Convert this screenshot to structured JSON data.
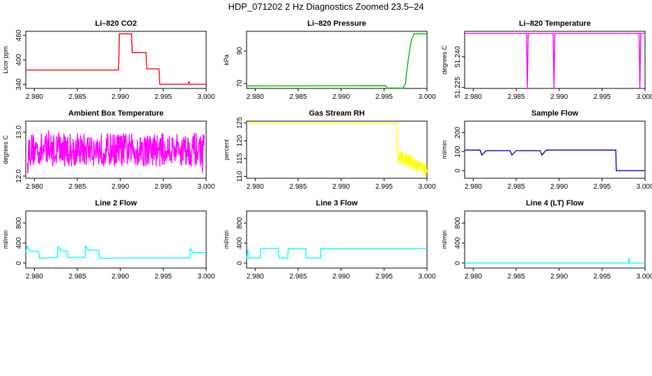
{
  "figure": {
    "title": "HDP_071202  2 Hz Diagnostics Zoomed 23.5–24"
  },
  "chart_data": [
    {
      "type": "line",
      "title": "Li–820 CO2",
      "xlabel": "",
      "ylabel": "Licor ppm",
      "xlim": [
        2.979,
        3.0
      ],
      "ylim": [
        330,
        470
      ],
      "xticks": [
        "2.980",
        "2.985",
        "2.990",
        "2.995",
        "3.000"
      ],
      "yticks": [
        {
          "value": 340,
          "label": "340"
        },
        {
          "value": 400,
          "label": "400"
        },
        {
          "value": 460,
          "label": "460"
        }
      ],
      "series": [
        {
          "color": "#ff0000",
          "x": [
            2.979,
            2.9898,
            2.9899,
            2.9913,
            2.9914,
            2.993,
            2.9931,
            2.9945,
            2.9946,
            2.9979,
            2.998,
            2.9981,
            3.0
          ],
          "y": [
            375,
            375,
            464,
            464,
            418,
            418,
            378,
            378,
            340,
            340,
            346,
            340,
            340
          ]
        }
      ]
    },
    {
      "type": "line",
      "title": "Li–820 Pressure",
      "xlabel": "",
      "ylabel": "kPa",
      "xlim": [
        2.979,
        3.0
      ],
      "ylim": [
        67,
        102
      ],
      "xticks": [
        "2.980",
        "2.985",
        "2.990",
        "2.995",
        "3.000"
      ],
      "yticks": [
        {
          "value": 70,
          "label": "70"
        },
        {
          "value": 90,
          "label": "90"
        }
      ],
      "series": [
        {
          "color": "#00bb00",
          "x": [
            2.979,
            2.9952,
            2.9953,
            2.9972,
            2.9975,
            2.9977,
            2.998,
            2.9982,
            2.9985,
            3.0
          ],
          "y": [
            68.5,
            68.7,
            67.2,
            67.2,
            70,
            80,
            91,
            97,
            100.5,
            100.5
          ]
        }
      ]
    },
    {
      "type": "line",
      "title": "Li–820 Temperature",
      "xlabel": "",
      "ylabel": "degrees C",
      "xlim": [
        2.979,
        3.0
      ],
      "ylim": [
        51.2245,
        51.2525
      ],
      "xticks": [
        "2.980",
        "2.985",
        "2.990",
        "2.995",
        "3.000"
      ],
      "yticks": [
        {
          "value": 51.225,
          "label": "51.225"
        },
        {
          "value": 51.24,
          "label": "51.240"
        }
      ],
      "series": [
        {
          "color": "#ff00ff",
          "x": [
            2.979,
            2.9862,
            2.9863,
            2.9864,
            2.9865,
            2.9893,
            2.9894,
            2.9895,
            2.9896,
            2.9993,
            2.9994,
            2.9995,
            2.9996,
            3.0
          ],
          "y": [
            51.2515,
            51.2515,
            51.2245,
            51.2515,
            51.2515,
            51.2515,
            51.2245,
            51.2515,
            51.2515,
            51.2515,
            51.2245,
            51.2515,
            51.2515,
            51.2515
          ]
        }
      ]
    },
    {
      "type": "line",
      "title": "Ambient Box Temperature",
      "xlabel": "",
      "ylabel": "degrees C",
      "xlim": [
        2.979,
        3.0
      ],
      "ylim": [
        11.95,
        13.25
      ],
      "xticks": [
        "2.980",
        "2.985",
        "2.990",
        "2.995",
        "3.000"
      ],
      "yticks": [
        {
          "value": 12.0,
          "label": "12.0"
        },
        {
          "value": 13.0,
          "label": "13.0"
        }
      ],
      "series": [
        {
          "color": "#ff00ff",
          "pattern": "noise",
          "x": [
            2.979,
            3.0
          ],
          "y": [
            12.6,
            12.6
          ],
          "y_low": 12.05,
          "y_high": 13.15
        }
      ]
    },
    {
      "type": "line",
      "title": "Gas Stream RH",
      "xlabel": "",
      "ylabel": "percent",
      "xlim": [
        2.979,
        3.0
      ],
      "ylim": [
        109.5,
        125.5
      ],
      "xticks": [
        "2.980",
        "2.985",
        "2.990",
        "2.995",
        "3.000"
      ],
      "yticks": [
        {
          "value": 110,
          "label": "110"
        },
        {
          "value": 115,
          "label": "115"
        },
        {
          "value": 120,
          "label": "120"
        },
        {
          "value": 125,
          "label": "125"
        }
      ],
      "series": [
        {
          "color": "#ffff00",
          "x": [
            2.979,
            2.9965,
            2.99655,
            2.997,
            2.998,
            2.999,
            3.0
          ],
          "y": [
            125,
            125,
            116,
            114,
            113,
            112,
            111
          ]
        }
      ]
    },
    {
      "type": "line",
      "title": "Sample Flow",
      "xlabel": "",
      "ylabel": "ml/min",
      "xlim": [
        2.979,
        3.0
      ],
      "ylim": [
        -40,
        260
      ],
      "xticks": [
        "2.980",
        "2.985",
        "2.990",
        "2.995",
        "3.000"
      ],
      "yticks": [
        {
          "value": 0,
          "label": "0"
        },
        {
          "value": 100,
          "label": "100"
        },
        {
          "value": 200,
          "label": "200"
        }
      ],
      "series": [
        {
          "color": "#0000cc",
          "x": [
            2.979,
            2.9808,
            2.981,
            2.9815,
            2.9843,
            2.9845,
            2.985,
            2.9878,
            2.988,
            2.9885,
            2.9966,
            2.99665,
            2.997,
            3.0
          ],
          "y": [
            108,
            108,
            82,
            105,
            105,
            82,
            105,
            105,
            82,
            108,
            108,
            0,
            0,
            0
          ]
        }
      ]
    },
    {
      "type": "line",
      "title": "Line 2 Flow",
      "xlabel": "",
      "ylabel": "ml/min",
      "xlim": [
        2.979,
        3.0
      ],
      "ylim": [
        -100,
        1040
      ],
      "xticks": [
        "2.980",
        "2.985",
        "2.990",
        "2.995",
        "3.000"
      ],
      "yticks": [
        {
          "value": 0,
          "label": "0"
        },
        {
          "value": 400,
          "label": "400"
        },
        {
          "value": 800,
          "label": "800"
        }
      ],
      "series": [
        {
          "color": "#00ffff",
          "x": [
            2.979,
            2.97915,
            2.9795,
            2.9805,
            2.9806,
            2.9827,
            2.98275,
            2.9831,
            2.9838,
            2.9839,
            2.9859,
            2.98595,
            2.9863,
            2.9875,
            2.9876,
            2.9896,
            2.9981,
            2.99815,
            2.9985,
            3.0
          ],
          "y": [
            220,
            330,
            240,
            230,
            90,
            120,
            330,
            250,
            240,
            110,
            120,
            340,
            260,
            250,
            90,
            100,
            100,
            290,
            210,
            210
          ]
        }
      ]
    },
    {
      "type": "line",
      "title": "Line 3 Flow",
      "xlabel": "",
      "ylabel": "ml/min",
      "xlim": [
        2.979,
        3.0
      ],
      "ylim": [
        -100,
        1040
      ],
      "xticks": [
        "2.980",
        "2.985",
        "2.990",
        "2.995",
        "3.000"
      ],
      "yticks": [
        {
          "value": 0,
          "label": "0"
        },
        {
          "value": 400,
          "label": "400"
        },
        {
          "value": 800,
          "label": "800"
        }
      ],
      "series": [
        {
          "color": "#00ffff",
          "x": [
            2.979,
            2.97915,
            2.9792,
            2.9806,
            2.98065,
            2.9827,
            2.98275,
            2.9838,
            2.98385,
            2.9859,
            2.98595,
            2.9876,
            2.98765,
            3.0
          ],
          "y": [
            100,
            270,
            100,
            100,
            290,
            290,
            100,
            100,
            290,
            290,
            100,
            100,
            290,
            290
          ]
        }
      ]
    },
    {
      "type": "line",
      "title": "Line 4 (LT) Flow",
      "xlabel": "",
      "ylabel": "ml/min",
      "xlim": [
        2.979,
        3.0
      ],
      "ylim": [
        -100,
        1040
      ],
      "xticks": [
        "2.980",
        "2.985",
        "2.990",
        "2.995",
        "3.000"
      ],
      "yticks": [
        {
          "value": 0,
          "label": "0"
        },
        {
          "value": 400,
          "label": "400"
        },
        {
          "value": 800,
          "label": "800"
        }
      ],
      "series": [
        {
          "color": "#00ffff",
          "x": [
            2.979,
            2.9981,
            2.99815,
            2.9982,
            3.0
          ],
          "y": [
            0,
            0,
            100,
            0,
            0
          ]
        }
      ]
    }
  ]
}
